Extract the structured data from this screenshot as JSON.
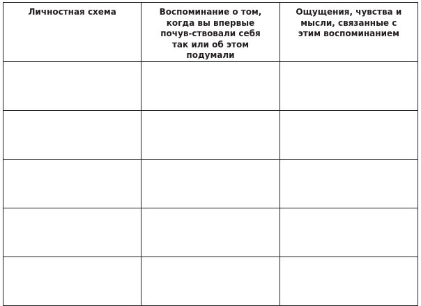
{
  "table": {
    "headers": [
      "Личностная схема",
      "Воспоминание о том, когда вы впервые почув-ствовали себя так или об этом подумали",
      "Ощущения, чувства и мысли, связанные с этим воспоминанием"
    ],
    "rows": [
      [
        "",
        "",
        ""
      ],
      [
        "",
        "",
        ""
      ],
      [
        "",
        "",
        ""
      ],
      [
        "",
        "",
        ""
      ],
      [
        "",
        "",
        ""
      ]
    ]
  }
}
